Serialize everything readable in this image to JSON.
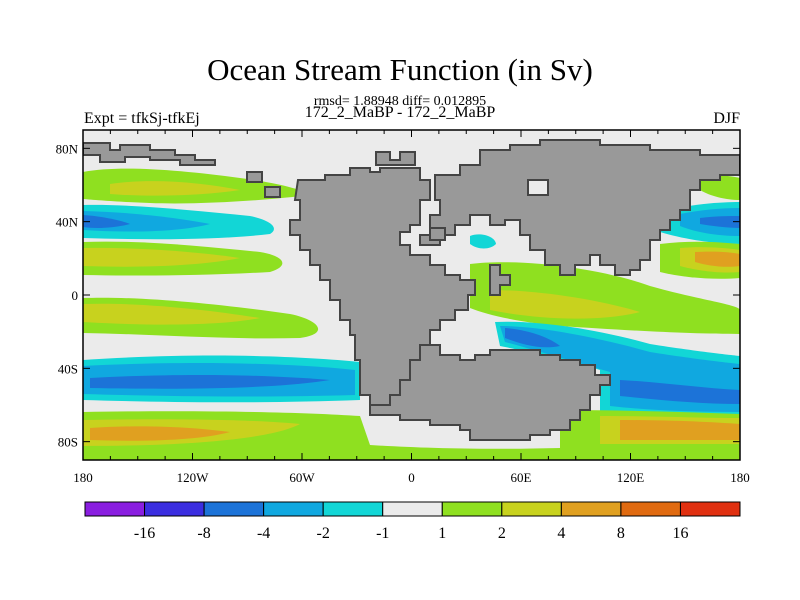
{
  "title": "Ocean Stream Function (in Sv)",
  "stats": "rmsd= 1.88948 diff= 0.012895",
  "left_label": "Expt = tfkSj-tfkEj",
  "center_label": "172_2_MaBP - 172_2_MaBP",
  "right_label": "DJF",
  "map": {
    "lon_ticks": [
      "180",
      "120W",
      "60W",
      "0",
      "60E",
      "120E",
      "180"
    ],
    "lat_ticks": [
      "80N",
      "40N",
      "0",
      "40S",
      "80S"
    ],
    "colors": {
      "land": "#999999",
      "coast": "#555555",
      "neutral": "#ebebeb"
    }
  },
  "colorbar": {
    "labels": [
      "-16",
      "-8",
      "-4",
      "-2",
      "-1",
      "1",
      "2",
      "4",
      "8",
      "16"
    ],
    "colors": [
      "#8a1ee0",
      "#3b2ee0",
      "#1c73d8",
      "#10a8e0",
      "#12d6d6",
      "#ebebeb",
      "#8fe020",
      "#c8d21e",
      "#e0a020",
      "#e06a10",
      "#e03010"
    ]
  }
}
